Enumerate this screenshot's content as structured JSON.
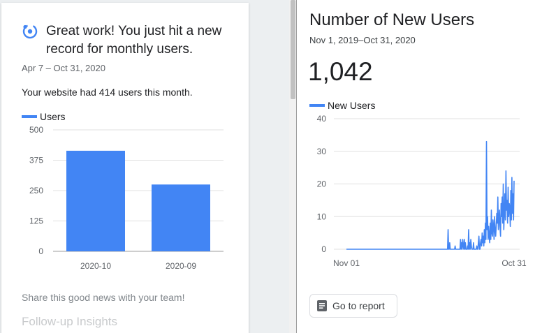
{
  "insight": {
    "title": "Great work! You just hit a new record for monthly users.",
    "dates": "Apr 7 – Oct 31, 2020",
    "description": "Your website had 414 users this month.",
    "share_text": "Share this good news with your team!",
    "followup_text": "Follow-up Insights",
    "icon": "insights-icon"
  },
  "report": {
    "title": "Number of New Users",
    "dates": "Nov 1, 2019–Oct 31, 2020",
    "total": "1,042",
    "button_label": "Go to report",
    "button_icon": "document-icon"
  },
  "colors": {
    "accent": "#4285f4",
    "grid": "#e0e0e0",
    "axis_text": "#5f6368"
  },
  "chart_data": [
    {
      "type": "bar",
      "categories": [
        "2020-10",
        "2020-09"
      ],
      "series": [
        {
          "name": "Users",
          "values": [
            414,
            275
          ]
        }
      ],
      "ylim": [
        0,
        500
      ],
      "yticks": [
        "500",
        "375",
        "250",
        "125",
        "0"
      ],
      "grid": true,
      "legend": "top-left"
    },
    {
      "type": "line",
      "series": [
        {
          "name": "New Users",
          "values": [
            0,
            0,
            0,
            0,
            0,
            0,
            0,
            0,
            0,
            0,
            0,
            0,
            0,
            0,
            0,
            0,
            0,
            0,
            0,
            0,
            0,
            0,
            0,
            0,
            0,
            0,
            0,
            0,
            0,
            0,
            0,
            0,
            0,
            0,
            0,
            0,
            0,
            0,
            0,
            0,
            0,
            0,
            0,
            0,
            0,
            0,
            0,
            0,
            0,
            0,
            0,
            0,
            0,
            0,
            0,
            0,
            0,
            0,
            0,
            0,
            0,
            0,
            0,
            0,
            0,
            0,
            0,
            0,
            0,
            0,
            0,
            0,
            0,
            0,
            0,
            0,
            0,
            0,
            0,
            0,
            0,
            0,
            0,
            0,
            0,
            0,
            0,
            0,
            0,
            0,
            0,
            0,
            0,
            0,
            0,
            0,
            0,
            0,
            0,
            0,
            0,
            0,
            0,
            0,
            0,
            0,
            0,
            0,
            0,
            0,
            0,
            0,
            0,
            0,
            0,
            0,
            0,
            0,
            0,
            0,
            0,
            0,
            0,
            0,
            0,
            0,
            0,
            0,
            0,
            0,
            0,
            0,
            0,
            0,
            0,
            0,
            0,
            0,
            0,
            0,
            0,
            0,
            0,
            0,
            0,
            0,
            0,
            0,
            0,
            0,
            0,
            0,
            0,
            0,
            0,
            0,
            0,
            0,
            0,
            0,
            0,
            0,
            0,
            0,
            0,
            0,
            0,
            0,
            0,
            0,
            0,
            0,
            0,
            0,
            0,
            0,
            0,
            0,
            0,
            0,
            0,
            0,
            0,
            0,
            0,
            0,
            0,
            0,
            6,
            0,
            0,
            2,
            0,
            0,
            0,
            0,
            0,
            0,
            0,
            0,
            0,
            1,
            0,
            0,
            0,
            0,
            0,
            0,
            0,
            0,
            0,
            3,
            0,
            2,
            0,
            3,
            1,
            0,
            3,
            0,
            2,
            0,
            0,
            0,
            1,
            0,
            6,
            0,
            2,
            0,
            3,
            1,
            0,
            0,
            0,
            2,
            0,
            0,
            0,
            0,
            0,
            1,
            0,
            0,
            2,
            4,
            0,
            0,
            2,
            3,
            1,
            5,
            2,
            4,
            1,
            6,
            2,
            8,
            3,
            33,
            6,
            10,
            3,
            7,
            4,
            2,
            8,
            3,
            12,
            5,
            4,
            9,
            7,
            3,
            10,
            6,
            4,
            7,
            11,
            8,
            16,
            6,
            9,
            12,
            7,
            4,
            14,
            10,
            16,
            8,
            20,
            6,
            11,
            17,
            9,
            24,
            12,
            15,
            8,
            19,
            10,
            14,
            13,
            7,
            18,
            9,
            22,
            11,
            17,
            9,
            21
          ]
        }
      ],
      "x_tick_labels": [
        "Nov 01",
        "Oct 31"
      ],
      "ylim": [
        0,
        40
      ],
      "yticks": [
        "40",
        "30",
        "20",
        "10",
        "0"
      ],
      "grid": true,
      "legend": "top-left"
    }
  ]
}
